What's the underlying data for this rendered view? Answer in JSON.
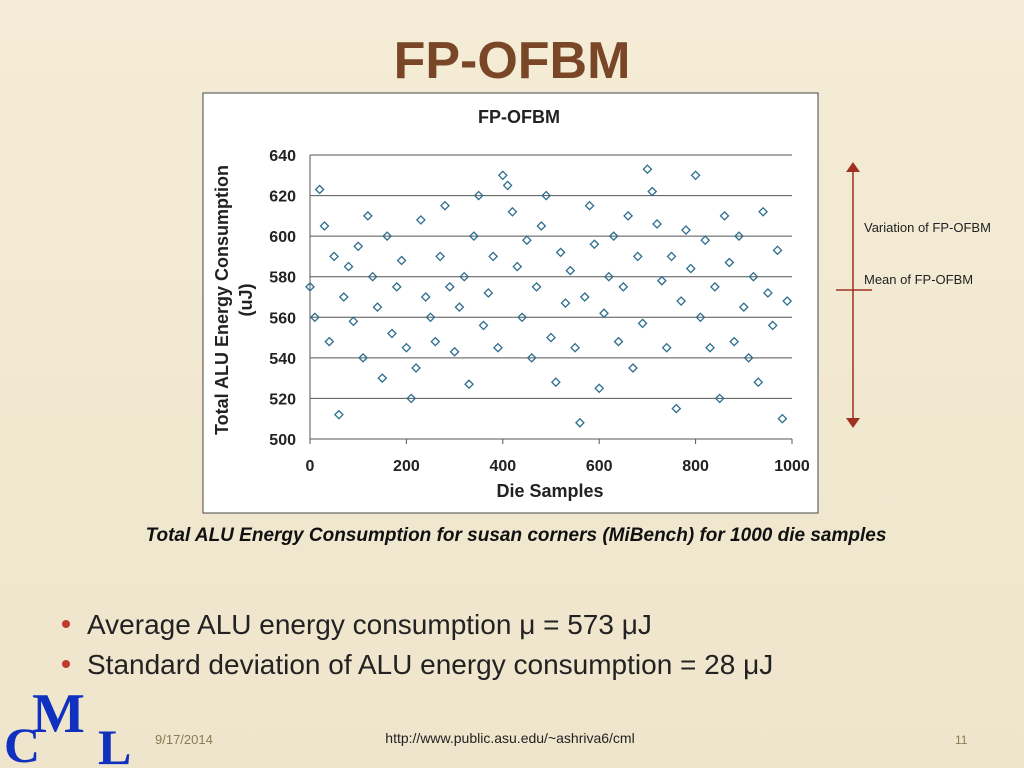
{
  "slide_title": "FP-OFBM",
  "chart_data": {
    "type": "scatter",
    "title": "FP-OFBM",
    "x_label": "Die Samples",
    "y_label": [
      "Total ALU Energy Consumption",
      "(uJ)"
    ],
    "x": [
      0,
      10,
      20,
      30,
      40,
      50,
      60,
      70,
      80,
      90,
      100,
      110,
      120,
      130,
      140,
      150,
      160,
      170,
      180,
      190,
      200,
      210,
      220,
      230,
      240,
      250,
      260,
      270,
      280,
      290,
      300,
      310,
      320,
      330,
      340,
      350,
      360,
      370,
      380,
      390,
      400,
      410,
      420,
      430,
      440,
      450,
      460,
      470,
      480,
      490,
      500,
      510,
      520,
      530,
      540,
      550,
      560,
      570,
      580,
      590,
      600,
      610,
      620,
      630,
      640,
      650,
      660,
      670,
      680,
      690,
      700,
      710,
      720,
      730,
      740,
      750,
      760,
      770,
      780,
      790,
      800,
      810,
      820,
      830,
      840,
      850,
      860,
      870,
      880,
      890,
      900,
      910,
      920,
      930,
      940,
      950,
      960,
      970,
      980,
      990
    ],
    "values": [
      575,
      560,
      623,
      605,
      548,
      590,
      512,
      570,
      585,
      558,
      595,
      540,
      610,
      580,
      565,
      530,
      600,
      552,
      575,
      588,
      545,
      520,
      535,
      608,
      570,
      560,
      548,
      590,
      615,
      575,
      543,
      565,
      580,
      527,
      600,
      620,
      556,
      572,
      590,
      545,
      630,
      625,
      612,
      585,
      560,
      598,
      540,
      575,
      605,
      620,
      550,
      528,
      592,
      567,
      583,
      545,
      508,
      570,
      615,
      596,
      525,
      562,
      580,
      600,
      548,
      575,
      610,
      535,
      590,
      557,
      633,
      622,
      606,
      578,
      545,
      590,
      515,
      568,
      603,
      584,
      630,
      560,
      598,
      545,
      575,
      520,
      610,
      587,
      548,
      600,
      565,
      540,
      580,
      528,
      612,
      572,
      556,
      593,
      510,
      568
    ],
    "marker_color": "#2e6e8e",
    "xlim": [
      0,
      1000
    ],
    "xticks": [
      0,
      200,
      400,
      600,
      800,
      1000
    ],
    "ylim": [
      500,
      640
    ],
    "yticks": [
      500,
      520,
      540,
      560,
      580,
      600,
      620,
      640
    ],
    "grid": true
  },
  "annotations": {
    "variation": "Variation of FP-OFBM",
    "mean": "Mean of FP-OFBM"
  },
  "caption": "Total ALU Energy Consumption for susan corners (MiBench) for 1000 die samples",
  "bullets": [
    "Average ALU energy consumption μ = 573 μJ",
    "Standard deviation of ALU energy consumption = 28 μJ"
  ],
  "footer": {
    "date": "9/17/2014",
    "url": "http://www.public.asu.edu/~ashriva6/cml",
    "page": "11"
  },
  "logo": [
    "C",
    "M",
    "L"
  ]
}
